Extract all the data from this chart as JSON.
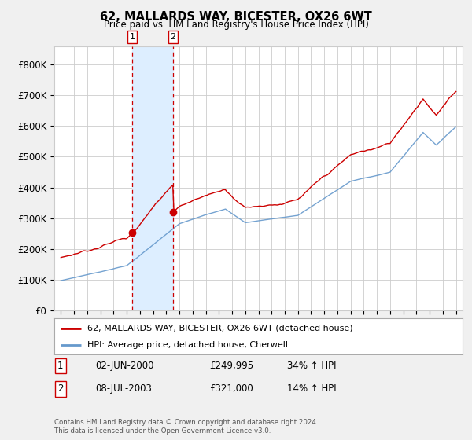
{
  "title": "62, MALLARDS WAY, BICESTER, OX26 6WT",
  "subtitle": "Price paid vs. HM Land Registry's House Price Index (HPI)",
  "footer1": "Contains HM Land Registry data © Crown copyright and database right 2024.",
  "footer2": "This data is licensed under the Open Government Licence v3.0.",
  "legend_line1": "62, MALLARDS WAY, BICESTER, OX26 6WT (detached house)",
  "legend_line2": "HPI: Average price, detached house, Cherwell",
  "transaction1_date": "02-JUN-2000",
  "transaction1_price": "£249,995",
  "transaction1_hpi": "34% ↑ HPI",
  "transaction2_date": "08-JUL-2003",
  "transaction2_price": "£321,000",
  "transaction2_hpi": "14% ↑ HPI",
  "line1_color": "#cc0000",
  "line2_color": "#6699cc",
  "shaded_color": "#ddeeff",
  "vline_color": "#cc0000",
  "t1_year": 2000.42,
  "t2_year": 2003.52,
  "t1_price": 249995,
  "t2_price": 321000,
  "ylim_min": 0,
  "ylim_max": 860000,
  "yticks": [
    0,
    100000,
    200000,
    300000,
    400000,
    500000,
    600000,
    700000,
    800000
  ],
  "ytick_labels": [
    "£0",
    "£100K",
    "£200K",
    "£300K",
    "£400K",
    "£500K",
    "£600K",
    "£700K",
    "£800K"
  ],
  "xmin": 1994.5,
  "xmax": 2025.5,
  "background_color": "#f0f0f0",
  "plot_background": "#ffffff",
  "grid_color": "#cccccc"
}
